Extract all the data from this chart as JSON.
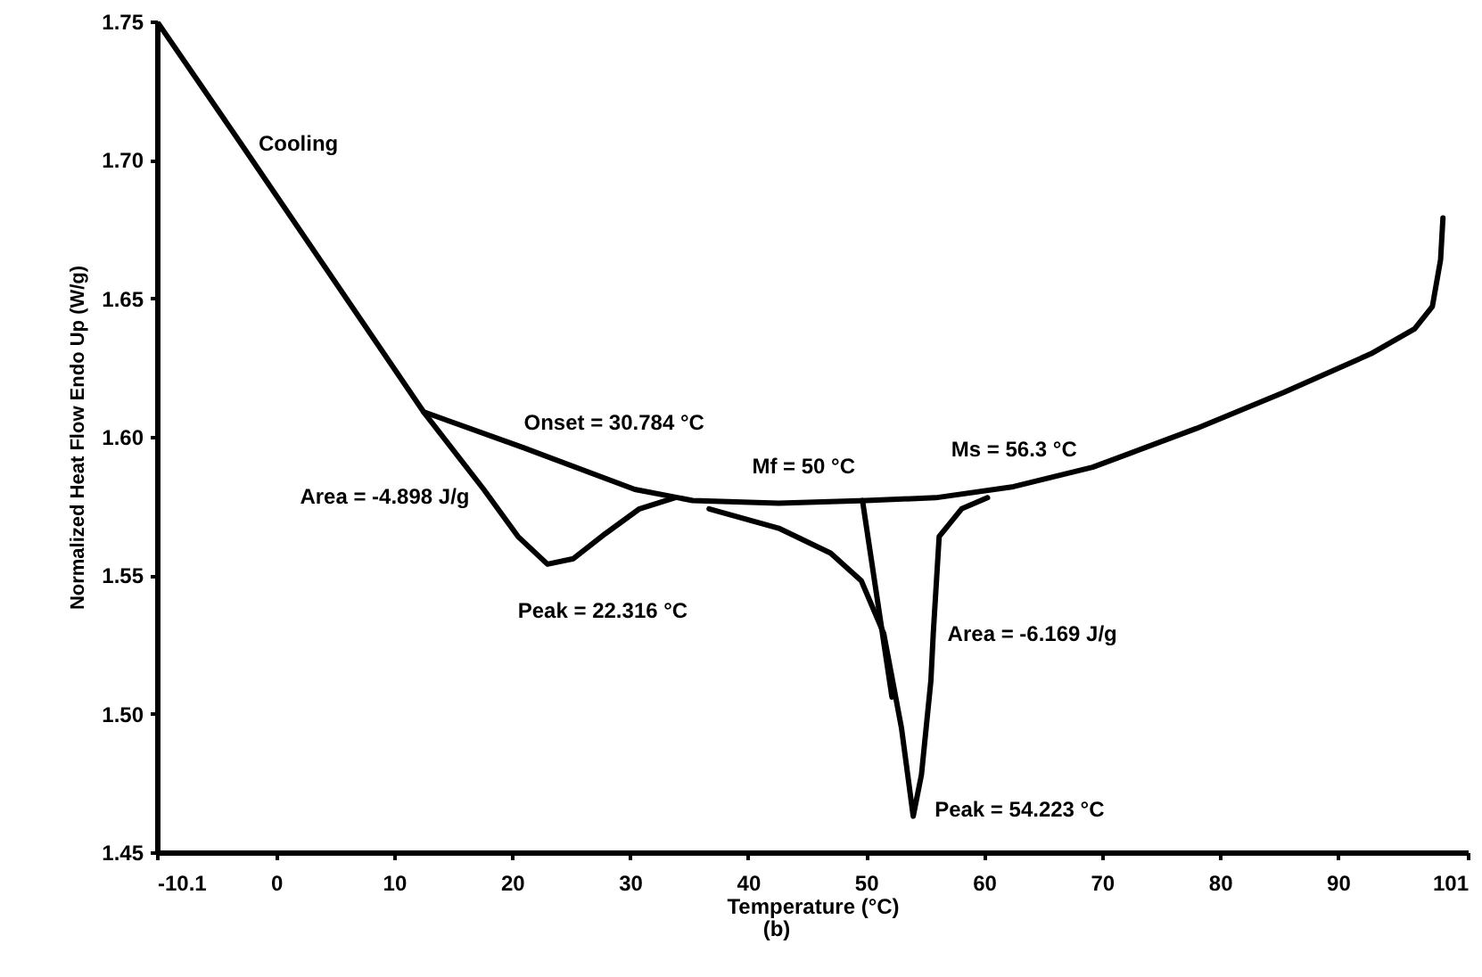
{
  "chart_data": {
    "type": "line",
    "xlabel": "Temperature (°C)",
    "ylabel": "Normalized Heat Flow Endo Up (W/g)",
    "xlim": [
      -10.1,
      101
    ],
    "xticks": [
      {
        "value": -10.1,
        "label": "-10.1"
      },
      0,
      10,
      20,
      30,
      40,
      50,
      60,
      70,
      80,
      90,
      101
    ],
    "ylim": [
      1.45,
      1.75
    ],
    "yticks": [
      1.45,
      {
        "value": 1.5,
        "label": "1.50"
      },
      1.55,
      {
        "value": 1.6,
        "label": "1.60"
      },
      1.65,
      {
        "value": 1.7,
        "label": "1.70"
      },
      1.75
    ],
    "grid": false,
    "marker": "none",
    "line_style": "solid",
    "series": [
      {
        "color": "#000000",
        "x": [
          -10.1,
          -3,
          12.5,
          21,
          30.4,
          35.3,
          42.6,
          50,
          55.9,
          62.5,
          69.2,
          78,
          85.4,
          92.8,
          96.5,
          98,
          98.7,
          98.9
        ],
        "values": [
          1.75,
          1.706,
          1.609,
          1.596,
          1.581,
          1.577,
          1.576,
          1.577,
          1.578,
          1.582,
          1.589,
          1.603,
          1.616,
          1.63,
          1.639,
          1.647,
          1.664,
          1.679
        ]
      },
      {
        "color": "#000000",
        "x": [
          12.5,
          17.6,
          20.5,
          23,
          25.2,
          27.9,
          30.8,
          33.8
        ],
        "values": [
          1.609,
          1.581,
          1.564,
          1.554,
          1.556,
          1.565,
          1.574,
          1.578
        ]
      },
      {
        "color": "#000000",
        "x": [
          36.7,
          42.6,
          47,
          49.6,
          51.5,
          53,
          54,
          54.7,
          55.5,
          55.7,
          56.2,
          58.1,
          60.3
        ],
        "values": [
          1.574,
          1.567,
          1.558,
          1.548,
          1.529,
          1.495,
          1.463,
          1.478,
          1.512,
          1.529,
          1.564,
          1.574,
          1.578
        ]
      },
      {
        "color": "#000000",
        "x": [
          49.7,
          52.2
        ],
        "values": [
          1.577,
          1.506
        ]
      }
    ],
    "annotations": [
      {
        "text": "Cooling",
        "x": -3,
        "y": 1.706
      },
      {
        "text": "Onset = 30.784 °C",
        "x": 21,
        "y": 1.596
      },
      {
        "text": "Area = -4.898 J/g",
        "x": 17.6,
        "y": 1.581
      },
      {
        "text": "Peak = 22.316 °C",
        "x": 23,
        "y": 1.554
      },
      {
        "text": "Mf = 50 °C",
        "x": 49.7,
        "y": 1.577
      },
      {
        "text": "Ms = 56.3 °C",
        "x": 55.9,
        "y": 1.578
      },
      {
        "text": "Area = -6.169 J/g",
        "x": 55.7,
        "y": 1.529
      },
      {
        "text": "Peak = 54.223 °C",
        "x": 54,
        "y": 1.463
      },
      "(b)"
    ]
  }
}
